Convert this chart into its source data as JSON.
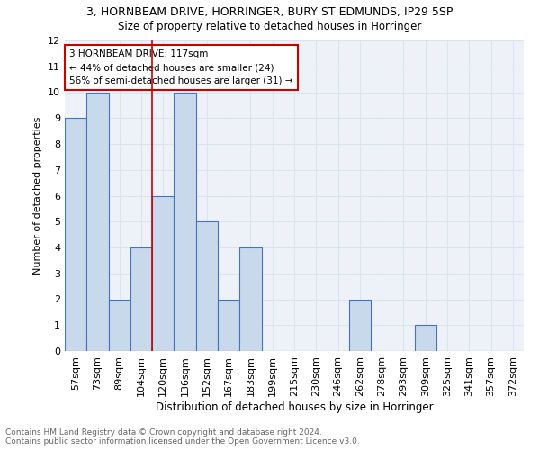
{
  "title1": "3, HORNBEAM DRIVE, HORRINGER, BURY ST EDMUNDS, IP29 5SP",
  "title2": "Size of property relative to detached houses in Horringer",
  "xlabel": "Distribution of detached houses by size in Horringer",
  "ylabel": "Number of detached properties",
  "categories": [
    "57sqm",
    "73sqm",
    "89sqm",
    "104sqm",
    "120sqm",
    "136sqm",
    "152sqm",
    "167sqm",
    "183sqm",
    "199sqm",
    "215sqm",
    "230sqm",
    "246sqm",
    "262sqm",
    "278sqm",
    "293sqm",
    "309sqm",
    "325sqm",
    "341sqm",
    "357sqm",
    "372sqm"
  ],
  "values": [
    9,
    10,
    2,
    4,
    6,
    10,
    5,
    2,
    4,
    0,
    0,
    0,
    0,
    2,
    0,
    0,
    1,
    0,
    0,
    0,
    0
  ],
  "bar_color": "#c9d9ec",
  "bar_edge_color": "#4472c4",
  "annotation_line1": "3 HORNBEAM DRIVE: 117sqm",
  "annotation_line2": "← 44% of detached houses are smaller (24)",
  "annotation_line3": "56% of semi-detached houses are larger (31) →",
  "annotation_box_color": "#ffffff",
  "annotation_box_edge_color": "#cc0000",
  "ylim": [
    0,
    12
  ],
  "yticks": [
    0,
    1,
    2,
    3,
    4,
    5,
    6,
    7,
    8,
    9,
    10,
    11,
    12
  ],
  "footer_text": "Contains HM Land Registry data © Crown copyright and database right 2024.\nContains public sector information licensed under the Open Government Licence v3.0.",
  "grid_color": "#d8e4f0",
  "bg_color": "#eef2f8"
}
